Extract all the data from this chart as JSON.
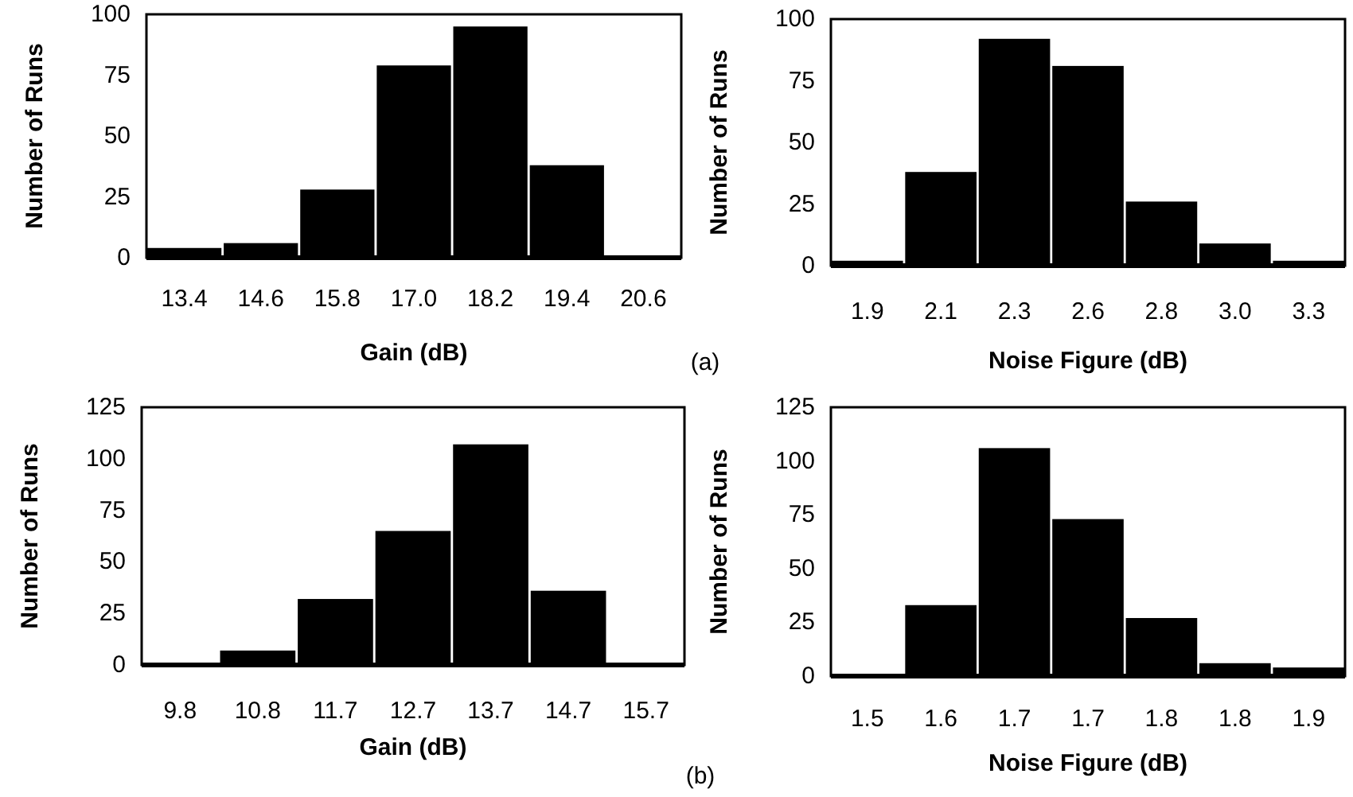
{
  "chart_data": [
    {
      "type": "bar",
      "xlabel": "Gain (dB)",
      "ylabel": "Number of Runs",
      "categories": [
        "13.4",
        "14.6",
        "15.8",
        "17.0",
        "18.2",
        "19.4",
        "20.6"
      ],
      "series": [
        {
          "color": "#000000",
          "values": [
            4,
            6,
            28,
            79,
            95,
            38,
            0
          ]
        }
      ],
      "ylim": [
        0,
        100
      ],
      "yticks": [
        0,
        25,
        50,
        75,
        100
      ]
    },
    {
      "type": "bar",
      "xlabel": "Noise Figure (dB)",
      "ylabel": "Number of Runs",
      "annotations": [
        "(a)"
      ],
      "categories": [
        "1.9",
        "2.1",
        "2.3",
        "2.6",
        "2.8",
        "3.0",
        "3.3"
      ],
      "series": [
        {
          "color": "#000000",
          "values": [
            2,
            38,
            92,
            81,
            26,
            9,
            2
          ]
        }
      ],
      "ylim": [
        0,
        100
      ],
      "yticks": [
        0,
        25,
        50,
        75,
        100
      ]
    },
    {
      "type": "bar",
      "xlabel": "Gain (dB)",
      "ylabel": "Number of Runs",
      "categories": [
        "9.8",
        "10.8",
        "11.7",
        "12.7",
        "13.7",
        "14.7",
        "15.7"
      ],
      "series": [
        {
          "color": "#000000",
          "values": [
            1,
            7,
            32,
            65,
            107,
            36,
            0
          ]
        }
      ],
      "ylim": [
        0,
        125
      ],
      "yticks": [
        0,
        25,
        50,
        75,
        100,
        125
      ]
    },
    {
      "type": "bar",
      "xlabel": "Noise Figure (dB)",
      "ylabel": "Number of Runs",
      "annotations": [
        "(b)"
      ],
      "categories": [
        "1.5",
        "1.6",
        "1.7",
        "1.7",
        "1.8",
        "1.8",
        "1.9"
      ],
      "series": [
        {
          "color": "#000000",
          "values": [
            1,
            33,
            106,
            73,
            27,
            6,
            4
          ]
        }
      ],
      "ylim": [
        0,
        125
      ],
      "yticks": [
        0,
        25,
        50,
        75,
        100,
        125
      ]
    }
  ]
}
